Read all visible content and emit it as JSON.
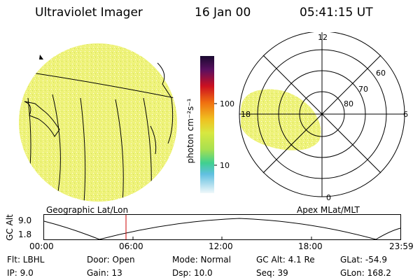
{
  "header": {
    "title": "Ultraviolet Imager",
    "date": "16 Jan 00",
    "time": "05:41:15 UT"
  },
  "colorbar": {
    "unit_label": "photon cm⁻²s⁻¹",
    "ticks": [
      "100",
      "10"
    ]
  },
  "polar": {
    "mlt_labels": [
      "12",
      "6",
      "18",
      "0"
    ],
    "lat_labels": [
      "60",
      "70",
      "80"
    ]
  },
  "captions": {
    "left": "Geographic Lat/Lon",
    "right": "Apex MLat/MLT"
  },
  "timeline": {
    "axis_label": "GC Alt",
    "y_ticks": [
      "9.0",
      "1.8"
    ],
    "x_ticks": [
      "00:00",
      "06:00",
      "12:00",
      "18:00",
      "23:59"
    ]
  },
  "status": {
    "flt": "Flt: LBHL",
    "ip": "IP:  9.0",
    "door": "Door: Open",
    "gain": "Gain: 13",
    "mode": "Mode: Normal",
    "dsp": "Dsp:  10.0",
    "gcalt": "GC Alt: 4.1 Re",
    "seq": "Seq: 39",
    "glat": "GLat: -54.9",
    "glon": "GLon: 168.2"
  },
  "colors": {
    "aurora_fill": "#e8f070",
    "marker_line": "#cc0000"
  }
}
